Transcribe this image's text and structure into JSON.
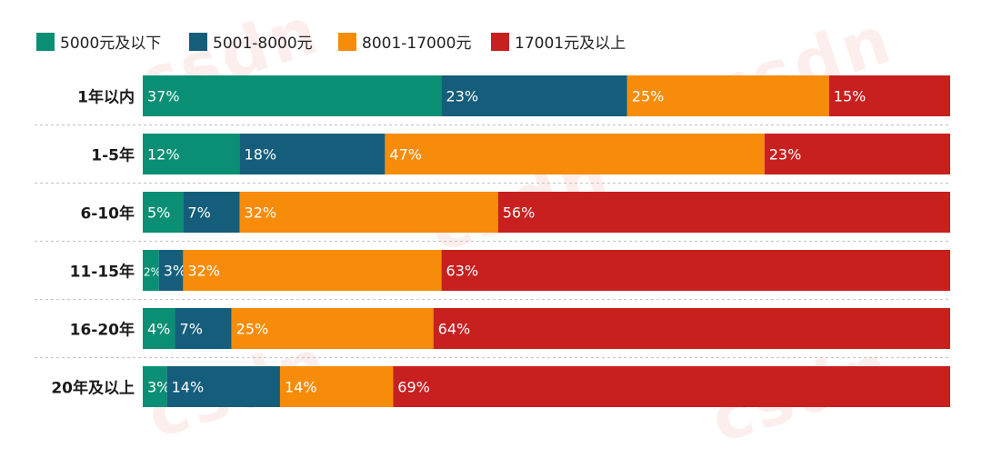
{
  "chart_data": {
    "type": "bar",
    "orientation": "horizontal",
    "stacked": true,
    "categories": [
      "1年以内",
      "1-5年",
      "6-10年",
      "11-15年",
      "16-20年",
      "20年及以上"
    ],
    "series": [
      {
        "name": "5000元及以下",
        "values": [
          37,
          12,
          5,
          2,
          4,
          3
        ]
      },
      {
        "name": "5001-8000元",
        "values": [
          23,
          18,
          7,
          3,
          7,
          14
        ]
      },
      {
        "name": "8001-17000元",
        "values": [
          25,
          47,
          32,
          32,
          25,
          14
        ]
      },
      {
        "name": "17001元及以上",
        "values": [
          15,
          23,
          56,
          63,
          64,
          69
        ]
      }
    ],
    "colors": [
      "#0a8f74",
      "#155e7b",
      "#f78c0a",
      "#c8201f"
    ],
    "xlim": [
      0,
      100
    ],
    "legend": "top-left",
    "grid": false
  },
  "watermark": "csdn"
}
